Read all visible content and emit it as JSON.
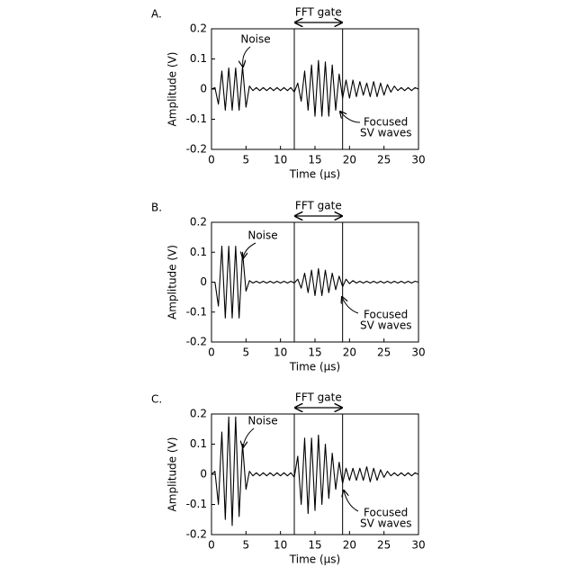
{
  "chart_data": [
    {
      "type": "line",
      "title": "A.",
      "xlabel": "Time (μs)",
      "ylabel": "Amplitude (V)",
      "gate_label": "FFT gate",
      "gate": [
        12,
        19
      ],
      "noise_label": "Noise",
      "wave_label": [
        "Focused",
        "SV waves"
      ],
      "color": "#000000",
      "xlim": [
        0,
        30
      ],
      "xticks": [
        0,
        5,
        10,
        15,
        20,
        25,
        30
      ],
      "ylim": [
        -0.2,
        0.2
      ],
      "yticks": [
        -0.2,
        -0.1,
        0,
        0.1,
        0.2
      ],
      "x": [
        0,
        0.5,
        1,
        1.5,
        2,
        2.5,
        3,
        3.5,
        4,
        4.5,
        5,
        5.5,
        6,
        6.5,
        7,
        7.5,
        8,
        8.5,
        9,
        9.5,
        10,
        10.5,
        11,
        11.5,
        12,
        12.5,
        13,
        13.5,
        14,
        14.5,
        15,
        15.5,
        16,
        16.5,
        17,
        17.5,
        18,
        18.5,
        19,
        19.5,
        20,
        20.5,
        21,
        21.5,
        22,
        22.5,
        23,
        23.5,
        24,
        24.5,
        25,
        25.5,
        26,
        26.5,
        27,
        27.5,
        28,
        28.5,
        29,
        29.5,
        30
      ],
      "values": [
        0,
        0.005,
        -0.05,
        0.06,
        -0.07,
        0.07,
        -0.07,
        0.07,
        -0.07,
        0.075,
        -0.06,
        0.01,
        -0.005,
        0.005,
        -0.005,
        0.005,
        -0.005,
        0.005,
        -0.005,
        0.005,
        -0.005,
        0.005,
        -0.005,
        0.005,
        -0.01,
        0.02,
        -0.04,
        0.06,
        -0.07,
        0.08,
        -0.09,
        0.095,
        -0.09,
        0.09,
        -0.09,
        0.08,
        -0.07,
        0.05,
        -0.03,
        0.03,
        -0.03,
        0.03,
        -0.025,
        0.025,
        -0.02,
        0.02,
        -0.025,
        0.025,
        -0.025,
        0.02,
        -0.02,
        0.015,
        -0.01,
        0.01,
        -0.005,
        0.005,
        -0.005,
        0.005,
        -0.005,
        0.005,
        0
      ]
    },
    {
      "type": "line",
      "title": "B.",
      "xlabel": "Time (μs)",
      "ylabel": "Amplitude (V)",
      "gate_label": "FFT gate",
      "gate": [
        12,
        19
      ],
      "noise_label": "Noise",
      "wave_label": [
        "Focused",
        "SV waves"
      ],
      "color": "#000000",
      "xlim": [
        0,
        30
      ],
      "xticks": [
        0,
        5,
        10,
        15,
        20,
        25,
        30
      ],
      "ylim": [
        -0.2,
        0.2
      ],
      "yticks": [
        -0.2,
        -0.1,
        0,
        0.1,
        0.2
      ],
      "x": [
        0,
        0.5,
        1,
        1.5,
        2,
        2.5,
        3,
        3.5,
        4,
        4.5,
        5,
        5.5,
        6,
        6.5,
        7,
        7.5,
        8,
        8.5,
        9,
        9.5,
        10,
        10.5,
        11,
        11.5,
        12,
        12.5,
        13,
        13.5,
        14,
        14.5,
        15,
        15.5,
        16,
        16.5,
        17,
        17.5,
        18,
        18.5,
        19,
        19.5,
        20,
        20.5,
        21,
        21.5,
        22,
        22.5,
        23,
        23.5,
        24,
        24.5,
        25,
        25.5,
        26,
        26.5,
        27,
        27.5,
        28,
        28.5,
        29,
        29.5,
        30
      ],
      "values": [
        0,
        0,
        -0.08,
        0.12,
        -0.12,
        0.12,
        -0.12,
        0.12,
        -0.12,
        0.1,
        -0.03,
        0.005,
        -0.003,
        0.003,
        -0.003,
        0.003,
        -0.003,
        0.003,
        -0.003,
        0.003,
        -0.003,
        0.003,
        -0.003,
        0.003,
        -0.003,
        0.01,
        -0.02,
        0.03,
        -0.035,
        0.04,
        -0.045,
        0.045,
        -0.045,
        0.04,
        -0.035,
        0.03,
        -0.025,
        0.02,
        -0.015,
        0.01,
        -0.005,
        0.005,
        -0.003,
        0.003,
        -0.003,
        0.003,
        -0.003,
        0.003,
        -0.003,
        0.003,
        -0.003,
        0.003,
        -0.003,
        0.003,
        -0.003,
        0.003,
        -0.003,
        0.003,
        -0.003,
        0.003,
        0
      ]
    },
    {
      "type": "line",
      "title": "C.",
      "xlabel": "Time (μs)",
      "ylabel": "Amplitude (V)",
      "gate_label": "FFT gate",
      "gate": [
        12,
        19
      ],
      "noise_label": "Noise",
      "wave_label": [
        "Focused",
        "SV waves"
      ],
      "color": "#000000",
      "xlim": [
        0,
        30
      ],
      "xticks": [
        0,
        5,
        10,
        15,
        20,
        25,
        30
      ],
      "ylim": [
        -0.2,
        0.2
      ],
      "yticks": [
        -0.2,
        -0.1,
        0,
        0.1,
        0.2
      ],
      "x": [
        0,
        0.5,
        1,
        1.5,
        2,
        2.5,
        3,
        3.5,
        4,
        4.5,
        5,
        5.5,
        6,
        6.5,
        7,
        7.5,
        8,
        8.5,
        9,
        9.5,
        10,
        10.5,
        11,
        11.5,
        12,
        12.5,
        13,
        13.5,
        14,
        14.5,
        15,
        15.5,
        16,
        16.5,
        17,
        17.5,
        18,
        18.5,
        19,
        19.5,
        20,
        20.5,
        21,
        21.5,
        22,
        22.5,
        23,
        23.5,
        24,
        24.5,
        25,
        25.5,
        26,
        26.5,
        27,
        27.5,
        28,
        28.5,
        29,
        29.5,
        30
      ],
      "values": [
        0,
        0.01,
        -0.1,
        0.14,
        -0.15,
        0.19,
        -0.17,
        0.19,
        -0.14,
        0.1,
        -0.05,
        0.01,
        -0.005,
        0.005,
        -0.005,
        0.005,
        -0.005,
        0.005,
        -0.005,
        0.005,
        -0.005,
        0.005,
        -0.005,
        0.005,
        -0.01,
        0.06,
        -0.1,
        0.12,
        -0.13,
        0.12,
        -0.12,
        0.13,
        -0.1,
        0.1,
        -0.08,
        0.07,
        -0.05,
        0.04,
        -0.03,
        0.02,
        -0.02,
        0.02,
        -0.02,
        0.02,
        -0.02,
        0.025,
        -0.025,
        0.02,
        -0.02,
        0.015,
        -0.01,
        0.01,
        -0.005,
        0.005,
        -0.005,
        0.005,
        -0.005,
        0.005,
        -0.005,
        0.005,
        0
      ]
    }
  ]
}
